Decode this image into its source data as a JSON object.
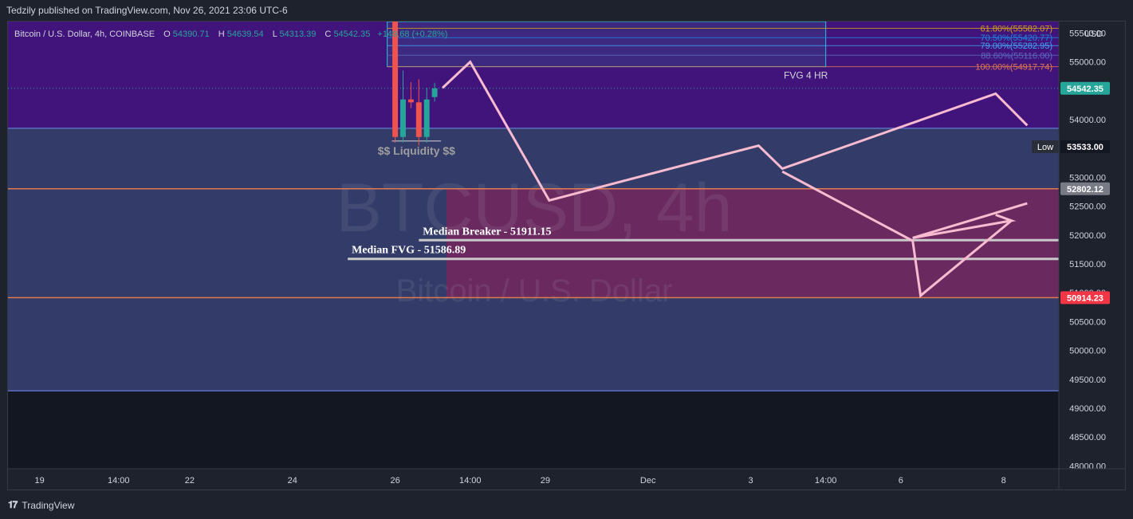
{
  "header": {
    "published": "Tedzily published on TradingView.com, Nov 26, 2021 23:06 UTC-6"
  },
  "footer": {
    "logo": "TradingView",
    "logo_icon": "tradingview-logo-icon"
  },
  "colors": {
    "background": "#131722",
    "premium_zone": "#4a148c",
    "discount_zone": "#5c6bc0",
    "fvg_zone": "#ad1457",
    "projection": "#f8bbd0",
    "bull": "#26a69a",
    "bear": "#ef5350",
    "level_line": "#e07a4f",
    "median_line": "#c8c8c8"
  },
  "chart_data": {
    "type": "candlestick",
    "symbol_line": {
      "name": "Bitcoin / U.S. Dollar, 4h, COINBASE",
      "o_label": "O",
      "o": "54390.71",
      "h_label": "H",
      "h": "54639.54",
      "l_label": "L",
      "l": "54313.39",
      "c_label": "C",
      "c": "54542.35",
      "change": "+149.68 (+0.28%)"
    },
    "watermark": {
      "main": "BTCUSD, 4h",
      "sub": "Bitcoin / U.S. Dollar"
    },
    "currency": "USD",
    "y_axis": {
      "range": [
        47950,
        55700
      ],
      "ticks": [
        {
          "v": 55500,
          "label": "55500.00"
        },
        {
          "v": 55000,
          "label": "55000.00"
        },
        {
          "v": 54500,
          "label": "54500.00"
        },
        {
          "v": 54000,
          "label": "54000.00"
        },
        {
          "v": 53500,
          "label": "53500.00"
        },
        {
          "v": 53000,
          "label": "53000.00"
        },
        {
          "v": 52500,
          "label": "52500.00"
        },
        {
          "v": 52000,
          "label": "52000.00"
        },
        {
          "v": 51500,
          "label": "51500.00"
        },
        {
          "v": 51000,
          "label": "51000.00"
        },
        {
          "v": 50500,
          "label": "50500.00"
        },
        {
          "v": 50000,
          "label": "50000.00"
        },
        {
          "v": 49500,
          "label": "49500.00"
        },
        {
          "v": 49000,
          "label": "49000.00"
        },
        {
          "v": 48500,
          "label": "48500.00"
        },
        {
          "v": 48000,
          "label": "48000.00"
        }
      ]
    },
    "x_axis": {
      "range": [
        -22,
        111
      ],
      "ticks": [
        {
          "x": -18,
          "label": "19"
        },
        {
          "x": -8,
          "label": "14:00"
        },
        {
          "x": 1,
          "label": "22"
        },
        {
          "x": 14,
          "label": "24"
        },
        {
          "x": 27,
          "label": "26"
        },
        {
          "x": 36.5,
          "label": "14:00"
        },
        {
          "x": 46,
          "label": "29"
        },
        {
          "x": 59,
          "label": "Dec"
        },
        {
          "x": 72,
          "label": "3"
        },
        {
          "x": 81.5,
          "label": "14:00"
        },
        {
          "x": 91,
          "label": "6"
        },
        {
          "x": 104,
          "label": "8"
        }
      ]
    },
    "candles": [
      {
        "x": 27,
        "o": 56200,
        "h": 56200,
        "l": 53600,
        "c": 53700
      },
      {
        "x": 28,
        "o": 53700,
        "h": 54850,
        "l": 53600,
        "c": 54350
      },
      {
        "x": 29,
        "o": 54350,
        "h": 54650,
        "l": 54200,
        "c": 54300
      },
      {
        "x": 30,
        "o": 54300,
        "h": 54700,
        "l": 53550,
        "c": 53700
      },
      {
        "x": 31,
        "o": 53700,
        "h": 54550,
        "l": 53600,
        "c": 54350
      },
      {
        "x": 32,
        "o": 54390.71,
        "h": 54639.54,
        "l": 54313.39,
        "c": 54542.35
      }
    ],
    "zones": [
      {
        "name": "premium",
        "y1": 55700,
        "y2": 53850,
        "x_start": -22,
        "x_end": 111
      },
      {
        "name": "discount",
        "y1": 53850,
        "y2": 49300,
        "x_start": -22,
        "x_end": 111
      },
      {
        "name": "fvg-4h",
        "y1": 52802.12,
        "y2": 50914.23,
        "x_start": 33.5,
        "x_end": 111
      }
    ],
    "fvg_box": {
      "label": "FVG 4 HR",
      "y1": 55700,
      "y2": 54917.74,
      "x_start": 26,
      "x_end": 81.5
    },
    "fib_levels": [
      {
        "label": "61.80%(55582.07)",
        "v": 55582.07,
        "color": "#d4a017"
      },
      {
        "label": "70.50%(55420.77)",
        "v": 55420.77,
        "color": "#1e88e5"
      },
      {
        "label": "79.00%(55282.95)",
        "v": 55282.95,
        "color": "#42a5f5"
      },
      {
        "label": "88.60%(55116.00)",
        "v": 55116.0,
        "color": "#5c6bc0"
      },
      {
        "label": "100.00%(54917.74)",
        "v": 54917.74,
        "color": "#e07a4f"
      }
    ],
    "horizontal_levels": [
      {
        "label": "52802.12",
        "v": 52802.12,
        "color": "#e07a4f",
        "tag_color": "#787b86"
      },
      {
        "label": "50914.23",
        "v": 50914.23,
        "color": "#e07a4f",
        "tag_color": "#f23645"
      }
    ],
    "median_lines": [
      {
        "label": "Median Breaker - 51911.15",
        "v": 51911.15,
        "x_start": 30,
        "x_end": 111
      },
      {
        "label": "Median FVG - 51586.89",
        "v": 51586.89,
        "x_start": 21,
        "x_end": 111
      }
    ],
    "liquidity": {
      "label": "$$ Liquidity $$",
      "v": 53630,
      "x_start": 27,
      "x_end": 32
    },
    "last_price": {
      "label": "54542.35",
      "v": 54542.35
    },
    "low_marker": {
      "label": "Low",
      "value": "53533.00"
    },
    "projection_path": [
      {
        "x": 33,
        "y": 54550
      },
      {
        "x": 36.5,
        "y": 55000
      },
      {
        "x": 46.5,
        "y": 52600
      },
      {
        "x": 73,
        "y": 53550
      },
      {
        "x": 76,
        "y": 53150
      },
      {
        "x": 103,
        "y": 54450
      },
      {
        "x": 107,
        "y": 53900
      }
    ],
    "projection_path_2": [
      {
        "x": 76,
        "y": 53100
      },
      {
        "x": 92.5,
        "y": 51900
      },
      {
        "x": 93.5,
        "y": 50950
      },
      {
        "x": 105,
        "y": 52250
      },
      {
        "x": 103,
        "y": 52350
      },
      {
        "x": 105,
        "y": 52250
      },
      {
        "x": 92.5,
        "y": 51950
      },
      {
        "x": 107,
        "y": 52550
      }
    ]
  }
}
